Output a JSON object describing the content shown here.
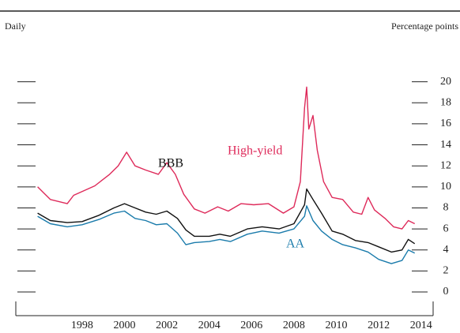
{
  "chart_data": {
    "type": "line",
    "subtitle": "Daily",
    "y_label": "Percentage points",
    "xlim": [
      1994.87,
      2014.57
    ],
    "xticks": [
      1998,
      2000,
      2002,
      2004,
      2006,
      2008,
      2010,
      2012,
      2014
    ],
    "ylim": [
      -2.25,
      22
    ],
    "yticks": [
      0,
      2,
      4,
      6,
      8,
      10,
      12,
      14,
      16,
      18,
      20
    ],
    "series": [
      {
        "name": "High-yield",
        "color": "#de2a5a",
        "x": [
          1995.9,
          1996.2,
          1996.5,
          1997.3,
          1997.6,
          1998.6,
          1999.3,
          1999.7,
          2000.1,
          2000.5,
          2001.0,
          2001.6,
          2002.0,
          2002.4,
          2002.8,
          2003.3,
          2003.8,
          2004.4,
          2004.9,
          2005.5,
          2006.1,
          2006.8,
          2007.5,
          2008.0,
          2008.3,
          2008.5,
          2008.6,
          2008.7,
          2008.9,
          2009.1,
          2009.4,
          2009.8,
          2010.3,
          2010.8,
          2011.2,
          2011.5,
          2011.8,
          2012.3,
          2012.7,
          2013.1,
          2013.4,
          2013.7
        ],
        "values": [
          10.0,
          9.4,
          8.8,
          8.4,
          9.2,
          10.1,
          11.2,
          12.0,
          13.3,
          12.0,
          11.6,
          11.2,
          12.3,
          11.2,
          9.3,
          7.9,
          7.5,
          8.1,
          7.7,
          8.4,
          8.3,
          8.4,
          7.5,
          8.1,
          10.5,
          17.5,
          19.5,
          15.5,
          16.8,
          13.5,
          10.5,
          9.0,
          8.8,
          7.6,
          7.4,
          9.0,
          7.8,
          7.0,
          6.2,
          6.0,
          6.8,
          6.5
        ]
      },
      {
        "name": "BBB",
        "color": "#111111",
        "x": [
          1995.9,
          1996.5,
          1997.3,
          1998.0,
          1998.8,
          1999.5,
          2000.0,
          2000.5,
          2001.0,
          2001.5,
          2002.0,
          2002.5,
          2002.9,
          2003.3,
          2004.0,
          2004.5,
          2005.0,
          2005.8,
          2006.5,
          2007.3,
          2008.0,
          2008.5,
          2008.6,
          2008.9,
          2009.3,
          2009.8,
          2010.3,
          2010.9,
          2011.5,
          2012.0,
          2012.6,
          2013.1,
          2013.4,
          2013.7
        ],
        "values": [
          7.5,
          6.8,
          6.6,
          6.7,
          7.3,
          8.0,
          8.4,
          8.0,
          7.6,
          7.4,
          7.7,
          7.0,
          5.9,
          5.3,
          5.3,
          5.5,
          5.3,
          6.0,
          6.2,
          6.0,
          6.5,
          8.3,
          9.8,
          8.8,
          7.5,
          5.8,
          5.5,
          4.9,
          4.7,
          4.3,
          3.8,
          4.0,
          5.0,
          4.6
        ]
      },
      {
        "name": "AA",
        "color": "#1a7bab",
        "x": [
          1995.9,
          1996.5,
          1997.3,
          1998.0,
          1998.8,
          1999.5,
          2000.0,
          2000.5,
          2001.0,
          2001.5,
          2002.0,
          2002.5,
          2002.9,
          2003.3,
          2004.0,
          2004.5,
          2005.0,
          2005.8,
          2006.5,
          2007.3,
          2008.0,
          2008.5,
          2008.6,
          2008.9,
          2009.3,
          2009.8,
          2010.3,
          2010.9,
          2011.5,
          2012.0,
          2012.6,
          2013.1,
          2013.4,
          2013.7
        ],
        "values": [
          7.2,
          6.5,
          6.2,
          6.4,
          6.9,
          7.5,
          7.7,
          7.0,
          6.8,
          6.4,
          6.5,
          5.6,
          4.5,
          4.7,
          4.8,
          5.0,
          4.8,
          5.5,
          5.8,
          5.6,
          6.0,
          7.2,
          8.2,
          6.8,
          5.8,
          5.0,
          4.5,
          4.2,
          3.8,
          3.1,
          2.7,
          3.0,
          4.0,
          3.7
        ]
      }
    ]
  }
}
